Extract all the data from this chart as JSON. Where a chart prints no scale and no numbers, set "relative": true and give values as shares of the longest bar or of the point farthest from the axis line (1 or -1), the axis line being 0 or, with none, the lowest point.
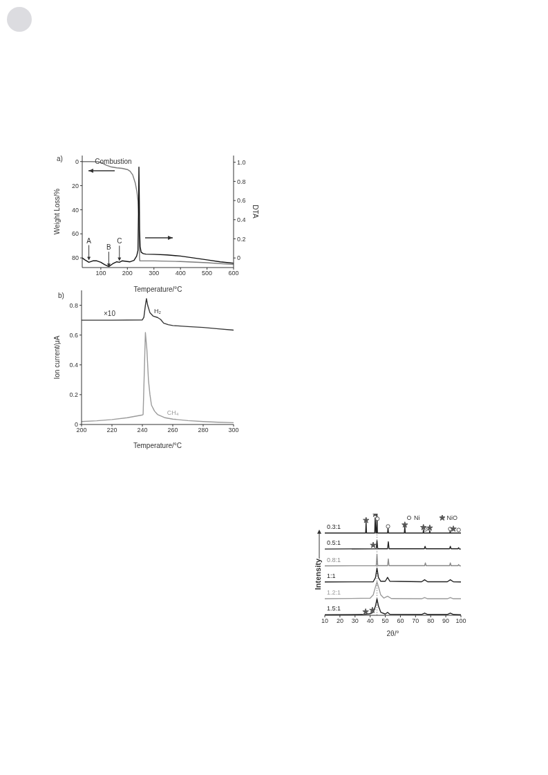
{
  "chart_data": [
    {
      "type": "line",
      "xlabel": "Temperature/°C",
      "ylabel": "Weight Loss/%",
      "y2label": "DTA",
      "xlim": [
        30,
        600
      ],
      "xticks": [
        100,
        200,
        300,
        400,
        500,
        600
      ],
      "ylim": [
        88,
        -5
      ],
      "yticks": [
        0,
        20,
        40,
        60,
        80
      ],
      "y2lim": [
        -0.1,
        1.07
      ],
      "y2ticks": [
        0,
        0.2,
        0.4,
        0.6,
        0.8,
        {
          "value": 1,
          "label": "1.0"
        }
      ],
      "series": [
        {
          "color": "#7a7a7a",
          "x": [
            30,
            60,
            90,
            100,
            110,
            120,
            140,
            160,
            180,
            200,
            210,
            220,
            230,
            236,
            240,
            243,
            245,
            246,
            247,
            250,
            300,
            400,
            500,
            600
          ],
          "values": [
            0,
            0,
            0.2,
            0.6,
            1.8,
            3,
            4.5,
            5.2,
            5.6,
            6.6,
            8,
            11,
            18,
            25,
            33,
            45,
            65,
            80,
            82.5,
            82.5,
            82.5,
            83,
            84,
            85.5
          ]
        },
        {
          "color": "#111111",
          "axis": "y2",
          "x": [
            30,
            40,
            55,
            70,
            85,
            100,
            115,
            130,
            145,
            160,
            170,
            180,
            195,
            210,
            225,
            235,
            240,
            242,
            243.5,
            245,
            246,
            248,
            252,
            260,
            270,
            300,
            350,
            400,
            450,
            500,
            550,
            600
          ],
          "values": [
            0,
            -0.02,
            -0.045,
            -0.03,
            -0.03,
            -0.045,
            -0.07,
            -0.09,
            -0.06,
            -0.04,
            -0.045,
            -0.03,
            -0.035,
            -0.04,
            -0.025,
            0.02,
            0.08,
            0.5,
            0.95,
            0.6,
            0.3,
            0.12,
            0.06,
            0.045,
            0.04,
            0.038,
            0.032,
            0.02,
            0,
            -0.02,
            -0.04,
            -0.055
          ]
        }
      ],
      "annotations": [
        "a)",
        "Combustion",
        {
          "text": "A",
          "x": 55,
          "y": 82
        },
        {
          "text": "B",
          "x": 130,
          "y": 87.5
        },
        {
          "text": "C",
          "x": 170,
          "y": 82.5
        }
      ]
    },
    {
      "type": "line",
      "xlabel": "Temperature/°C",
      "ylabel": "Ion current/μA",
      "xlim": [
        200,
        300
      ],
      "xticks": [
        200,
        220,
        240,
        260,
        280,
        300
      ],
      "ylim": [
        0,
        0.9
      ],
      "yticks": [
        0,
        0.2,
        0.4,
        0.6,
        0.8
      ],
      "series": [
        {
          "name": "H₂",
          "color": "#333333",
          "x": [
            200,
            220,
            240,
            241,
            242,
            242.7,
            243.5,
            245,
            247,
            250,
            252,
            254,
            257,
            260,
            270,
            280,
            290,
            300
          ],
          "values": [
            0.7,
            0.7,
            0.702,
            0.72,
            0.8,
            0.845,
            0.8,
            0.75,
            0.728,
            0.718,
            0.705,
            0.68,
            0.67,
            0.664,
            0.657,
            0.651,
            0.642,
            0.633
          ]
        },
        {
          "name": "CH₄",
          "color": "#9a9a9a",
          "x": [
            200,
            210,
            220,
            230,
            240,
            240.5,
            242,
            243,
            244,
            245,
            246,
            248,
            250,
            255,
            260,
            270,
            280,
            290,
            300
          ],
          "values": [
            0.02,
            0.025,
            0.033,
            0.045,
            0.064,
            0.067,
            0.617,
            0.5,
            0.3,
            0.2,
            0.13,
            0.09,
            0.067,
            0.045,
            0.036,
            0.026,
            0.02,
            0.015,
            0.012
          ]
        }
      ],
      "annotations": [
        "b)",
        "×10"
      ]
    },
    {
      "type": "line",
      "relative": true,
      "xlabel": "2θ/°",
      "ylabel": "Intensity",
      "xlim": [
        10,
        100
      ],
      "xticks": [
        10,
        20,
        30,
        40,
        50,
        60,
        70,
        80,
        90,
        100
      ],
      "legend": "top right",
      "ref_lines": [
        {
          "axis": "x",
          "value": 44.5,
          "line_style": "dotted",
          "color": "#888888"
        }
      ],
      "series": [
        {
          "name": "0.3:1",
          "color": "#222222",
          "x": [
            10,
            37,
            37.3,
            37.6,
            43,
            43.3,
            43.8,
            44.2,
            44.5,
            44.8,
            51.5,
            51.8,
            52.1,
            62.6,
            62.9,
            63.2,
            75,
            75.2,
            75.5,
            79.2,
            79.4,
            79.6,
            92.7,
            92.9,
            93.1,
            100
          ],
          "values": [
            0.81,
            0.81,
            0.916,
            0.81,
            0.81,
            0.96,
            0.81,
            0.81,
            1,
            0.81,
            0.81,
            0.86,
            0.81,
            0.81,
            0.878,
            0.81,
            0.81,
            0.84,
            0.81,
            0.81,
            0.835,
            0.81,
            0.81,
            0.835,
            0.81,
            0.81
          ]
        },
        {
          "name": "0.5:1",
          "color": "#222222",
          "x": [
            10,
            44,
            44.5,
            45,
            51.5,
            52,
            52.5,
            75.8,
            76.3,
            76.8,
            92.5,
            93,
            93.5,
            98,
            98.5,
            99,
            100
          ],
          "values": [
            0.652,
            0.655,
            0.735,
            0.655,
            0.655,
            0.724,
            0.655,
            0.655,
            0.679,
            0.655,
            0.655,
            0.679,
            0.655,
            0.655,
            0.665,
            0.652,
            0.652
          ]
        },
        {
          "name": "0.8:1",
          "color": "#8a8a8a",
          "x": [
            10,
            44,
            44.5,
            45,
            51.5,
            52,
            52.5,
            76,
            76.5,
            77,
            92.5,
            93,
            93.5,
            98,
            98.5,
            99,
            100
          ],
          "values": [
            0.486,
            0.488,
            0.6,
            0.488,
            0.488,
            0.554,
            0.488,
            0.488,
            0.515,
            0.488,
            0.488,
            0.515,
            0.488,
            0.488,
            0.5,
            0.488,
            0.486
          ]
        },
        {
          "name": "1:1",
          "color": "#222222",
          "x": [
            10,
            42,
            43.5,
            44.5,
            45.5,
            47,
            50,
            51.5,
            53,
            74,
            76,
            78,
            91,
            93,
            95,
            100
          ],
          "values": [
            0.328,
            0.33,
            0.37,
            0.464,
            0.37,
            0.335,
            0.335,
            0.373,
            0.335,
            0.33,
            0.35,
            0.33,
            0.33,
            0.35,
            0.33,
            0.328
          ]
        },
        {
          "name": "1.2:1",
          "color": "#9a9a9a",
          "x": [
            10,
            40,
            42,
            43.5,
            44.5,
            45.5,
            47,
            49,
            51.5,
            54,
            74,
            76,
            78,
            91,
            93,
            95,
            100
          ],
          "values": [
            0.163,
            0.168,
            0.2,
            0.28,
            0.328,
            0.28,
            0.2,
            0.17,
            0.188,
            0.165,
            0.163,
            0.175,
            0.163,
            0.163,
            0.175,
            0.163,
            0.163
          ]
        },
        {
          "name": "1.5:1",
          "color": "#222222",
          "x": [
            10,
            35,
            40,
            42,
            43.5,
            44.5,
            45.5,
            47,
            50,
            51.5,
            53,
            74,
            76,
            78,
            91,
            93,
            95,
            100
          ],
          "values": [
            0.005,
            0.008,
            0.015,
            0.03,
            0.09,
            0.163,
            0.09,
            0.03,
            0.012,
            0.029,
            0.01,
            0.008,
            0.022,
            0.008,
            0.008,
            0.022,
            0.008,
            0.005
          ]
        },
        {
          "name": "Ni",
          "type": "scatter",
          "marker": "circle",
          "color": "#555555",
          "x": [
            44.8,
            51.8,
            76.5,
            92.9,
            98.5
          ],
          "values": [
            0.95,
            0.875,
            0.845,
            0.85,
            0.84
          ]
        },
        {
          "name": "NiO",
          "type": "scatter",
          "marker": "star",
          "color": "#555555",
          "x": [
            37.3,
            43.3,
            62.9,
            75.2,
            79.4,
            95,
            42,
            37,
            41.5
          ],
          "values": [
            0.935,
            0.995,
            0.89,
            0.865,
            0.86,
            0.85,
            0.69,
            0.035,
            0.05
          ]
        }
      ]
    }
  ]
}
